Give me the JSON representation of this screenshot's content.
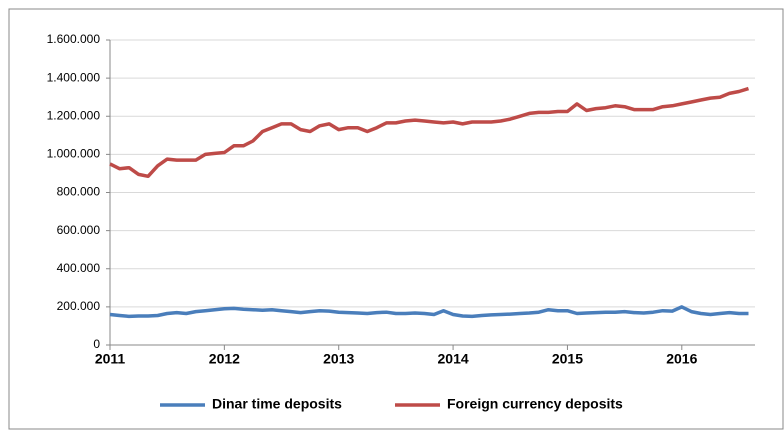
{
  "chart_data": {
    "type": "line",
    "categories": [
      "2011",
      null,
      null,
      null,
      null,
      null,
      null,
      null,
      null,
      null,
      null,
      null,
      "2012",
      null,
      null,
      null,
      null,
      null,
      null,
      null,
      null,
      null,
      null,
      null,
      "2013",
      null,
      null,
      null,
      null,
      null,
      null,
      null,
      null,
      null,
      null,
      null,
      "2014",
      null,
      null,
      null,
      null,
      null,
      null,
      null,
      null,
      null,
      null,
      null,
      "2015",
      null,
      null,
      null,
      null,
      null,
      null,
      null,
      null,
      null,
      null,
      null,
      "2016",
      null,
      null,
      null,
      null,
      null,
      null,
      null
    ],
    "series": [
      {
        "name": "Dinar time deposits",
        "color": "#4a7ebb",
        "values": [
          160000,
          155000,
          150000,
          152000,
          152000,
          155000,
          165000,
          170000,
          165000,
          175000,
          180000,
          185000,
          190000,
          192000,
          188000,
          185000,
          182000,
          185000,
          180000,
          175000,
          170000,
          175000,
          180000,
          178000,
          172000,
          170000,
          168000,
          165000,
          170000,
          172000,
          165000,
          165000,
          168000,
          165000,
          160000,
          180000,
          160000,
          152000,
          150000,
          155000,
          158000,
          160000,
          162000,
          165000,
          168000,
          172000,
          185000,
          180000,
          180000,
          165000,
          168000,
          170000,
          172000,
          172000,
          175000,
          170000,
          168000,
          172000,
          180000,
          178000,
          200000,
          175000,
          165000,
          160000,
          165000,
          170000,
          165000,
          165000
        ]
      },
      {
        "name": "Foreign currency deposits",
        "color": "#be4b48",
        "values": [
          950000,
          925000,
          930000,
          895000,
          885000,
          940000,
          975000,
          970000,
          970000,
          970000,
          1000000,
          1005000,
          1010000,
          1045000,
          1045000,
          1070000,
          1120000,
          1140000,
          1160000,
          1160000,
          1130000,
          1120000,
          1150000,
          1160000,
          1130000,
          1140000,
          1140000,
          1120000,
          1140000,
          1165000,
          1165000,
          1175000,
          1180000,
          1175000,
          1170000,
          1165000,
          1170000,
          1160000,
          1170000,
          1170000,
          1170000,
          1175000,
          1185000,
          1200000,
          1215000,
          1220000,
          1220000,
          1225000,
          1225000,
          1265000,
          1230000,
          1240000,
          1245000,
          1255000,
          1250000,
          1235000,
          1235000,
          1235000,
          1250000,
          1255000,
          1265000,
          1275000,
          1285000,
          1295000,
          1300000,
          1320000,
          1330000,
          1345000
        ]
      }
    ],
    "ylim": [
      0,
      1600000
    ],
    "yticks": [
      0,
      {
        "value": 200000,
        "label": "200.000"
      },
      {
        "value": 400000,
        "label": "400.000"
      },
      {
        "value": 600000,
        "label": "600.000"
      },
      {
        "value": 800000,
        "label": "800.000"
      },
      {
        "value": 1000000,
        "label": "1.000.000"
      },
      {
        "value": 1200000,
        "label": "1.200.000"
      },
      {
        "value": 1400000,
        "label": "1.400.000"
      },
      {
        "value": 1600000,
        "label": "1.600.000"
      }
    ],
    "grid": true
  }
}
